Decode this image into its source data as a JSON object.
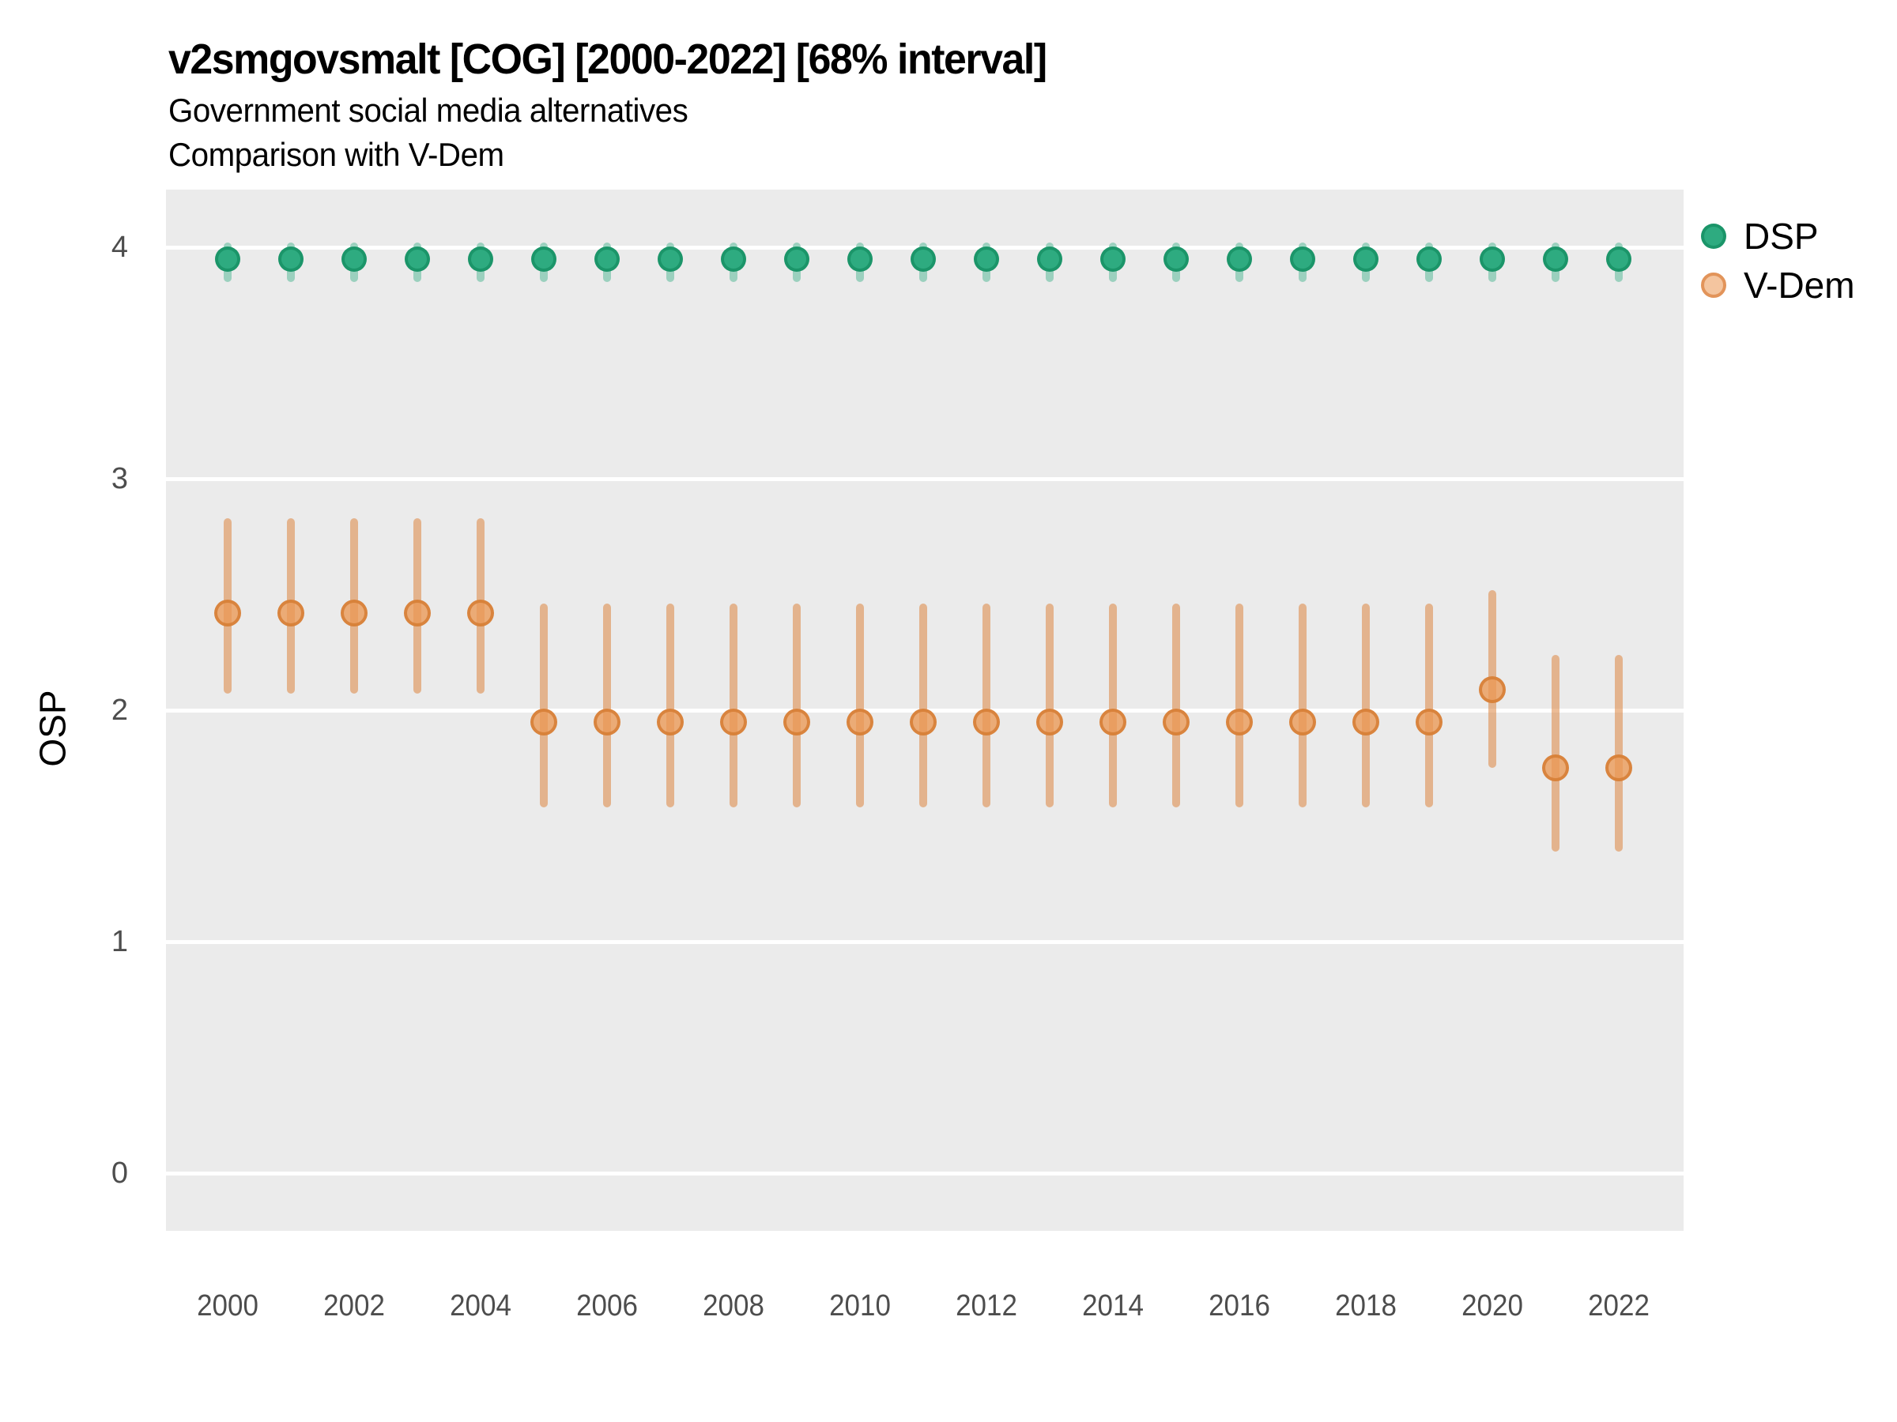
{
  "title": "v2smgovsmalt [COG] [2000-2022] [68% interval]",
  "subtitle_line1": "Government social media alternatives",
  "subtitle_line2": "Comparison with V-Dem",
  "ylabel": "OSP",
  "legend": {
    "position": "right",
    "items": [
      {
        "label": "DSP",
        "color": "#2EAB80"
      },
      {
        "label": "V-Dem",
        "color": "#F4C59F",
        "border_color": "#E2945A"
      }
    ]
  },
  "colors": {
    "panel_background": "#EBEBEB",
    "gridline": "#FFFFFF",
    "dsp_point": "#2EAB80",
    "dsp_interval": "rgba(46,171,128,0.42)",
    "vdem_point": "#E99954",
    "vdem_interval": "rgba(221,133,64,0.55)",
    "axis_text": "#4D4D4D"
  },
  "chart_data": {
    "type": "pointrange",
    "title": "v2smgovsmalt [COG] [2000-2022] [68% interval]",
    "subtitle": [
      "Government social media alternatives",
      "Comparison with V-Dem"
    ],
    "xlabel": "",
    "ylabel": "OSP",
    "interval_level": "68%",
    "grid": "horizontal-major-only",
    "legend_position": "right",
    "ylim": [
      -0.25,
      4.25
    ],
    "y_ticks": [
      0,
      1,
      2,
      3,
      4
    ],
    "x_tick_labels": [
      "2000",
      "2002",
      "2004",
      "2006",
      "2008",
      "2010",
      "2012",
      "2014",
      "2016",
      "2018",
      "2020",
      "2022"
    ],
    "x": [
      2000,
      2001,
      2002,
      2003,
      2004,
      2005,
      2006,
      2007,
      2008,
      2009,
      2010,
      2011,
      2012,
      2013,
      2014,
      2015,
      2016,
      2017,
      2018,
      2019,
      2020,
      2021,
      2022
    ],
    "series": [
      {
        "name": "DSP",
        "points": [
          {
            "year": 2000,
            "est": 3.95,
            "lo": 3.85,
            "hi": 4.02
          },
          {
            "year": 2001,
            "est": 3.95,
            "lo": 3.85,
            "hi": 4.02
          },
          {
            "year": 2002,
            "est": 3.95,
            "lo": 3.85,
            "hi": 4.02
          },
          {
            "year": 2003,
            "est": 3.95,
            "lo": 3.85,
            "hi": 4.02
          },
          {
            "year": 2004,
            "est": 3.95,
            "lo": 3.85,
            "hi": 4.02
          },
          {
            "year": 2005,
            "est": 3.95,
            "lo": 3.85,
            "hi": 4.02
          },
          {
            "year": 2006,
            "est": 3.95,
            "lo": 3.85,
            "hi": 4.02
          },
          {
            "year": 2007,
            "est": 3.95,
            "lo": 3.85,
            "hi": 4.02
          },
          {
            "year": 2008,
            "est": 3.95,
            "lo": 3.85,
            "hi": 4.02
          },
          {
            "year": 2009,
            "est": 3.95,
            "lo": 3.85,
            "hi": 4.02
          },
          {
            "year": 2010,
            "est": 3.95,
            "lo": 3.85,
            "hi": 4.02
          },
          {
            "year": 2011,
            "est": 3.95,
            "lo": 3.85,
            "hi": 4.02
          },
          {
            "year": 2012,
            "est": 3.95,
            "lo": 3.85,
            "hi": 4.02
          },
          {
            "year": 2013,
            "est": 3.95,
            "lo": 3.85,
            "hi": 4.02
          },
          {
            "year": 2014,
            "est": 3.95,
            "lo": 3.85,
            "hi": 4.02
          },
          {
            "year": 2015,
            "est": 3.95,
            "lo": 3.85,
            "hi": 4.02
          },
          {
            "year": 2016,
            "est": 3.95,
            "lo": 3.85,
            "hi": 4.02
          },
          {
            "year": 2017,
            "est": 3.95,
            "lo": 3.85,
            "hi": 4.02
          },
          {
            "year": 2018,
            "est": 3.95,
            "lo": 3.85,
            "hi": 4.02
          },
          {
            "year": 2019,
            "est": 3.95,
            "lo": 3.85,
            "hi": 4.02
          },
          {
            "year": 2020,
            "est": 3.95,
            "lo": 3.85,
            "hi": 4.02
          },
          {
            "year": 2021,
            "est": 3.95,
            "lo": 3.85,
            "hi": 4.02
          },
          {
            "year": 2022,
            "est": 3.95,
            "lo": 3.85,
            "hi": 4.02
          }
        ]
      },
      {
        "name": "V-Dem",
        "points": [
          {
            "year": 2000,
            "est": 2.42,
            "lo": 2.07,
            "hi": 2.83
          },
          {
            "year": 2001,
            "est": 2.42,
            "lo": 2.07,
            "hi": 2.83
          },
          {
            "year": 2002,
            "est": 2.42,
            "lo": 2.07,
            "hi": 2.83
          },
          {
            "year": 2003,
            "est": 2.42,
            "lo": 2.07,
            "hi": 2.83
          },
          {
            "year": 2004,
            "est": 2.42,
            "lo": 2.07,
            "hi": 2.83
          },
          {
            "year": 2005,
            "est": 1.95,
            "lo": 1.58,
            "hi": 2.46
          },
          {
            "year": 2006,
            "est": 1.95,
            "lo": 1.58,
            "hi": 2.46
          },
          {
            "year": 2007,
            "est": 1.95,
            "lo": 1.58,
            "hi": 2.46
          },
          {
            "year": 2008,
            "est": 1.95,
            "lo": 1.58,
            "hi": 2.46
          },
          {
            "year": 2009,
            "est": 1.95,
            "lo": 1.58,
            "hi": 2.46
          },
          {
            "year": 2010,
            "est": 1.95,
            "lo": 1.58,
            "hi": 2.46
          },
          {
            "year": 2011,
            "est": 1.95,
            "lo": 1.58,
            "hi": 2.46
          },
          {
            "year": 2012,
            "est": 1.95,
            "lo": 1.58,
            "hi": 2.46
          },
          {
            "year": 2013,
            "est": 1.95,
            "lo": 1.58,
            "hi": 2.46
          },
          {
            "year": 2014,
            "est": 1.95,
            "lo": 1.58,
            "hi": 2.46
          },
          {
            "year": 2015,
            "est": 1.95,
            "lo": 1.58,
            "hi": 2.46
          },
          {
            "year": 2016,
            "est": 1.95,
            "lo": 1.58,
            "hi": 2.46
          },
          {
            "year": 2017,
            "est": 1.95,
            "lo": 1.58,
            "hi": 2.46
          },
          {
            "year": 2018,
            "est": 1.95,
            "lo": 1.58,
            "hi": 2.46
          },
          {
            "year": 2019,
            "est": 1.95,
            "lo": 1.58,
            "hi": 2.46
          },
          {
            "year": 2020,
            "est": 2.09,
            "lo": 1.75,
            "hi": 2.52
          },
          {
            "year": 2021,
            "est": 1.75,
            "lo": 1.39,
            "hi": 2.24
          },
          {
            "year": 2022,
            "est": 1.75,
            "lo": 1.39,
            "hi": 2.24
          }
        ]
      }
    ]
  }
}
